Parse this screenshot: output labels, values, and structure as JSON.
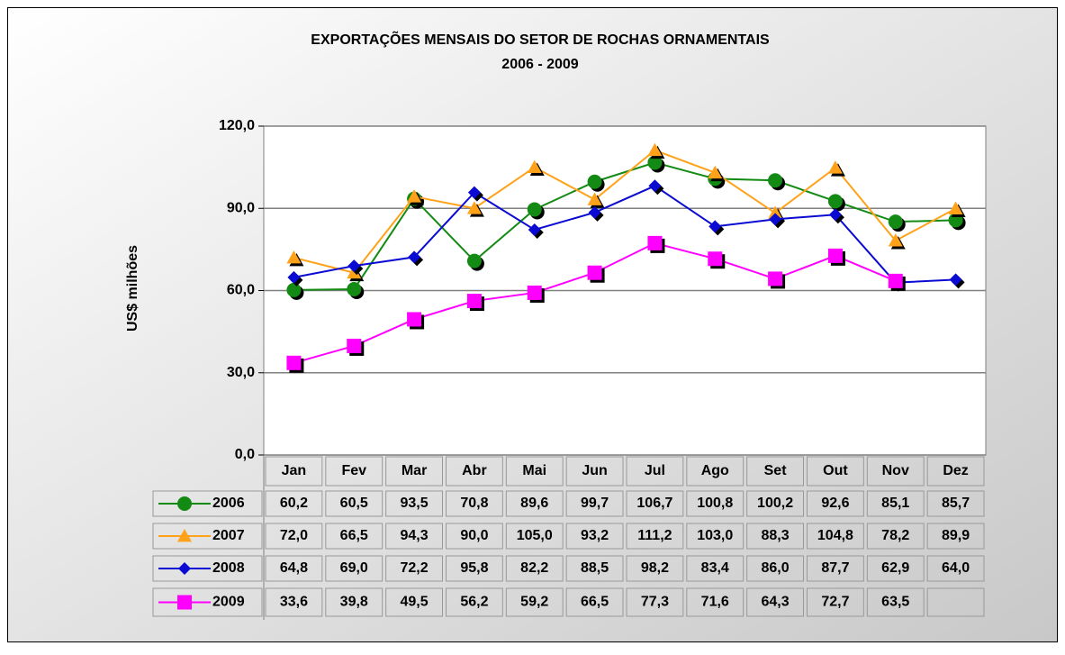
{
  "chart_data": {
    "type": "line",
    "title": "EXPORTAÇÕES MENSAIS DO SETOR DE ROCHAS ORNAMENTAIS",
    "subtitle": "2006 - 2009",
    "y_label": "US$ milhões",
    "categories": [
      "Jan",
      "Fev",
      "Mar",
      "Abr",
      "Mai",
      "Jun",
      "Jul",
      "Ago",
      "Set",
      "Out",
      "Nov",
      "Dez"
    ],
    "ylim": [
      0,
      120
    ],
    "yticks": [
      {
        "value": 0,
        "label": "0,0"
      },
      {
        "value": 30,
        "label": "30,0"
      },
      {
        "value": 60,
        "label": "60,0"
      },
      {
        "value": 90,
        "label": "90,0"
      },
      {
        "value": 120,
        "label": "120,0"
      }
    ],
    "grid": true,
    "series": [
      {
        "name": "2006",
        "color": "#138a13",
        "marker": "circle",
        "values": [
          60.2,
          60.5,
          93.5,
          70.8,
          89.6,
          99.7,
          106.7,
          100.8,
          100.2,
          92.6,
          85.1,
          85.7
        ],
        "value_labels": [
          "60,2",
          "60,5",
          "93,5",
          "70,8",
          "89,6",
          "99,7",
          "106,7",
          "100,8",
          "100,2",
          "92,6",
          "85,1",
          "85,7"
        ]
      },
      {
        "name": "2007",
        "color": "#ffa21a",
        "marker": "triangle",
        "values": [
          72.0,
          66.5,
          94.3,
          90.0,
          105.0,
          93.2,
          111.2,
          103.0,
          88.3,
          104.8,
          78.2,
          89.9
        ],
        "value_labels": [
          "72,0",
          "66,5",
          "94,3",
          "90,0",
          "105,0",
          "93,2",
          "111,2",
          "103,0",
          "88,3",
          "104,8",
          "78,2",
          "89,9"
        ]
      },
      {
        "name": "2008",
        "color": "#0a0ad2",
        "marker": "diamond",
        "values": [
          64.8,
          69.0,
          72.2,
          95.8,
          82.2,
          88.5,
          98.2,
          83.4,
          86.0,
          87.7,
          62.9,
          64.0
        ],
        "value_labels": [
          "64,8",
          "69,0",
          "72,2",
          "95,8",
          "82,2",
          "88,5",
          "98,2",
          "83,4",
          "86,0",
          "87,7",
          "62,9",
          "64,0"
        ]
      },
      {
        "name": "2009",
        "color": "#ff00ff",
        "marker": "square",
        "values": [
          33.6,
          39.8,
          49.5,
          56.2,
          59.2,
          66.5,
          77.3,
          71.6,
          64.3,
          72.7,
          63.5,
          null
        ],
        "value_labels": [
          "33,6",
          "39,8",
          "49,5",
          "56,2",
          "59,2",
          "66,5",
          "77,3",
          "71,6",
          "64,3",
          "72,7",
          "63,5",
          null
        ]
      }
    ]
  }
}
